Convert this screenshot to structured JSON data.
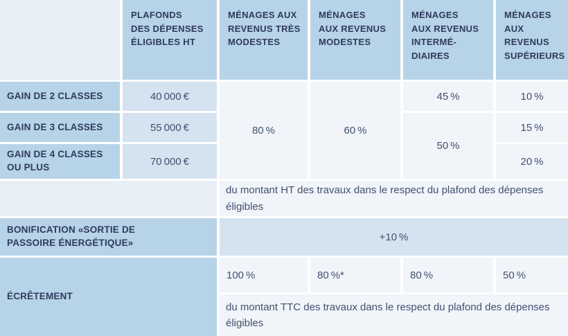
{
  "colors": {
    "cell_medium": "#b7d3e7",
    "cell_light": "#e8eff6",
    "cell_value": "#d4e3ef",
    "cell_pale": "#f1f5fa",
    "text_heading": "#2e3a5e",
    "text_value": "#42506f"
  },
  "header": {
    "plafonds": "PLAFONDS\nDES DÉPENSES\nÉLIGIBLES HT",
    "tres_modestes": "MÉNAGES AUX\nREVENUS TRÈS\nMODESTES",
    "modestes": "MÉNAGES\nAUX REVENUS\nMODESTES",
    "intermediaires": "MÉNAGES\nAUX REVENUS\nINTERMÉ-\nDIAIRES",
    "superieurs": "MÉNAGES\nAUX\nREVENUS\nSUPÉRIEURS"
  },
  "rows": {
    "gain2": {
      "label": "GAIN DE 2 CLASSES",
      "plafond": "40 000 €",
      "intermediaires": "45 %",
      "superieurs": "10 %"
    },
    "gain3": {
      "label": "GAIN DE 3 CLASSES",
      "plafond": "55 000 €",
      "superieurs": "15 %"
    },
    "gain4": {
      "label": "GAIN DE 4 CLASSES\nOU PLUS",
      "plafond": "70 000 €",
      "superieurs": "20 %"
    },
    "tres_modestes_rate": "80 %",
    "modestes_rate": "60 %",
    "intermediaires_rate_gain34": "50 %"
  },
  "note_ht": "du montant HT des travaux dans le respect du plafond des dépenses éligibles",
  "bonification": {
    "label": "BONIFICATION «SORTIE DE\nPASSOIRE ÉNERGÉTIQUE»",
    "value": "+10 %"
  },
  "ecretement": {
    "label": "ÉCRÊTEMENT",
    "tres_modestes": "100 %",
    "modestes": "80 %*",
    "intermediaires": "80 %",
    "superieurs": "50 %",
    "note": "du montant TTC des travaux dans le respect du plafond des dépenses éligibles"
  }
}
